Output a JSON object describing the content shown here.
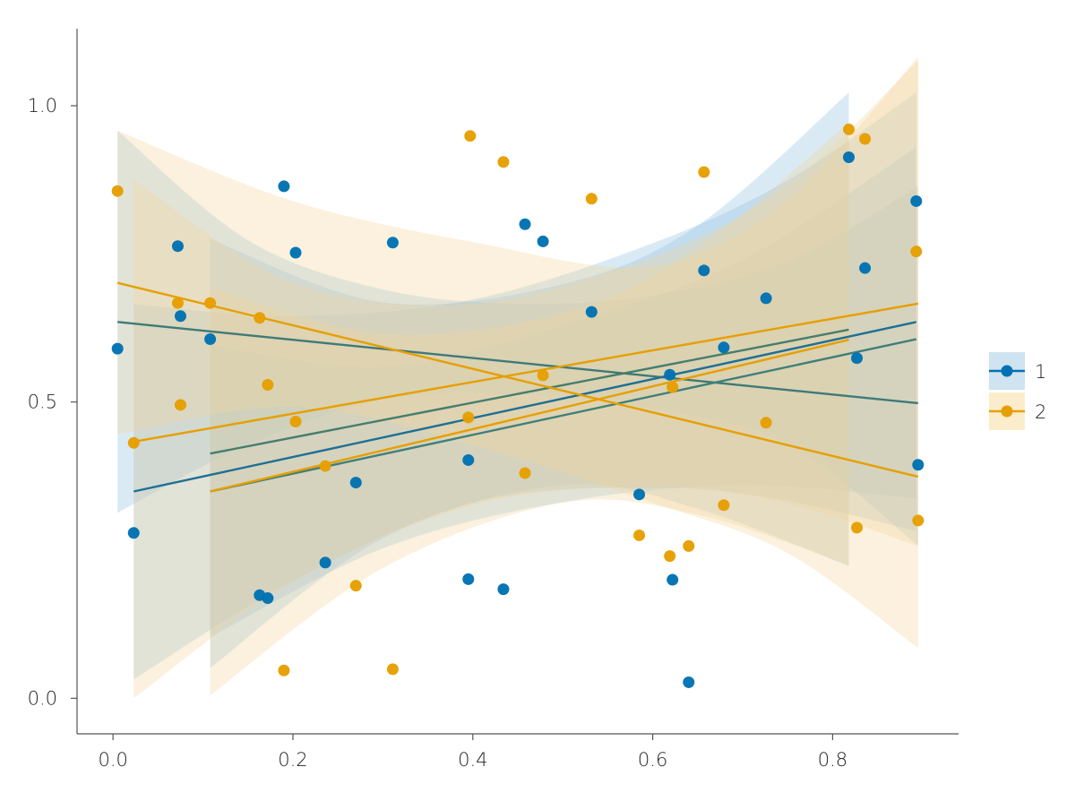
{
  "chart_data": {
    "type": "scatter",
    "title": "",
    "xlabel": "",
    "ylabel": "",
    "xlim": [
      -0.04,
      0.94
    ],
    "ylim": [
      -0.06,
      1.13
    ],
    "x_ticks": [
      {
        "value": 0.0,
        "label": "0.0"
      },
      {
        "value": 0.2,
        "label": "0.2"
      },
      {
        "value": 0.4,
        "label": "0.4"
      },
      {
        "value": 0.6,
        "label": "0.6"
      },
      {
        "value": 0.8,
        "label": "0.8"
      }
    ],
    "y_ticks": [
      {
        "value": 0.0,
        "label": "0.0"
      },
      {
        "value": 0.5,
        "label": "0.5"
      },
      {
        "value": 1.0,
        "label": "1.0"
      }
    ],
    "grid": false,
    "legend_position": "right",
    "series": [
      {
        "name": "1",
        "color": "#0072b2",
        "points": [
          [
            0.005,
            0.59
          ],
          [
            0.023,
            0.279
          ],
          [
            0.072,
            0.763
          ],
          [
            0.075,
            0.645
          ],
          [
            0.108,
            0.606
          ],
          [
            0.163,
            0.174
          ],
          [
            0.172,
            0.169
          ],
          [
            0.19,
            0.864
          ],
          [
            0.203,
            0.752
          ],
          [
            0.236,
            0.229
          ],
          [
            0.27,
            0.364
          ],
          [
            0.311,
            0.769
          ],
          [
            0.395,
            0.402
          ],
          [
            0.395,
            0.201
          ],
          [
            0.434,
            0.184
          ],
          [
            0.458,
            0.8
          ],
          [
            0.478,
            0.771
          ],
          [
            0.532,
            0.652
          ],
          [
            0.585,
            0.344
          ],
          [
            0.619,
            0.546
          ],
          [
            0.622,
            0.2
          ],
          [
            0.64,
            0.027
          ],
          [
            0.657,
            0.722
          ],
          [
            0.679,
            0.592
          ],
          [
            0.726,
            0.675
          ],
          [
            0.818,
            0.913
          ],
          [
            0.827,
            0.574
          ],
          [
            0.836,
            0.726
          ],
          [
            0.893,
            0.839
          ],
          [
            0.895,
            0.394
          ]
        ],
        "fit_lines": [
          {
            "x": [
              0.005,
              0.895
            ],
            "y": [
              0.635,
              0.498
            ]
          },
          {
            "x": [
              0.023,
              0.893
            ],
            "y": [
              0.349,
              0.635
            ]
          },
          {
            "x": [
              0.108,
              0.818
            ],
            "y": [
              0.413,
              0.622
            ]
          },
          {
            "x": [
              0.108,
              0.893
            ],
            "y": [
              0.349,
              0.606
            ]
          }
        ],
        "bands": [
          {
            "x": [
              0.005,
              0.15,
              0.3,
              0.45,
              0.6,
              0.75,
              0.895
            ],
            "lower": [
              0.313,
              0.428,
              0.504,
              0.513,
              0.489,
              0.43,
              0.258
            ],
            "upper": [
              0.958,
              0.773,
              0.69,
              0.666,
              0.68,
              0.737,
              0.864
            ]
          },
          {
            "x": [
              0.023,
              0.2,
              0.4,
              0.6,
              0.75,
              0.893
            ],
            "lower": [
              0.032,
              0.198,
              0.33,
              0.356,
              0.333,
              0.282
            ],
            "upper": [
              0.665,
              0.645,
              0.673,
              0.768,
              0.874,
              1.022
            ]
          },
          {
            "x": [
              0.108,
              0.3,
              0.5,
              0.65,
              0.818
            ],
            "lower": [
              0.051,
              0.27,
              0.36,
              0.32,
              0.223
            ],
            "upper": [
              0.775,
              0.668,
              0.699,
              0.798,
              1.022
            ]
          },
          {
            "x": [
              0.108,
              0.3,
              0.5,
              0.7,
              0.893
            ],
            "lower": [
              0.103,
              0.253,
              0.331,
              0.36,
              0.337
            ],
            "upper": [
              0.596,
              0.559,
              0.629,
              0.74,
              0.93
            ]
          }
        ]
      },
      {
        "name": "2",
        "color": "#e69f00",
        "points": [
          [
            0.005,
            0.856
          ],
          [
            0.023,
            0.431
          ],
          [
            0.072,
            0.667
          ],
          [
            0.075,
            0.495
          ],
          [
            0.108,
            0.667
          ],
          [
            0.163,
            0.642
          ],
          [
            0.172,
            0.529
          ],
          [
            0.19,
            0.047
          ],
          [
            0.203,
            0.467
          ],
          [
            0.236,
            0.392
          ],
          [
            0.27,
            0.19
          ],
          [
            0.311,
            0.049
          ],
          [
            0.395,
            0.474
          ],
          [
            0.397,
            0.949
          ],
          [
            0.434,
            0.905
          ],
          [
            0.458,
            0.38
          ],
          [
            0.478,
            0.545
          ],
          [
            0.532,
            0.843
          ],
          [
            0.585,
            0.275
          ],
          [
            0.619,
            0.24
          ],
          [
            0.622,
            0.525
          ],
          [
            0.64,
            0.257
          ],
          [
            0.657,
            0.888
          ],
          [
            0.679,
            0.326
          ],
          [
            0.726,
            0.465
          ],
          [
            0.818,
            0.96
          ],
          [
            0.827,
            0.288
          ],
          [
            0.836,
            0.944
          ],
          [
            0.893,
            0.754
          ],
          [
            0.895,
            0.3
          ]
        ],
        "fit_lines": [
          {
            "x": [
              0.005,
              0.895
            ],
            "y": [
              0.701,
              0.374
            ]
          },
          {
            "x": [
              0.023,
              0.895
            ],
            "y": [
              0.433,
              0.666
            ]
          },
          {
            "x": [
              0.108,
              0.818
            ],
            "y": [
              0.349,
              0.605
            ]
          }
        ],
        "bands": [
          {
            "x": [
              0.005,
              0.2,
              0.4,
              0.6,
              0.75,
              0.895
            ],
            "lower": [
              0.445,
              0.492,
              0.427,
              0.33,
              0.245,
              0.085
            ],
            "upper": [
              0.958,
              0.839,
              0.77,
              0.729,
              0.841,
              1.082
            ]
          },
          {
            "x": [
              0.023,
              0.2,
              0.4,
              0.6,
              0.75,
              0.895
            ],
            "lower": [
              0.0,
              0.196,
              0.326,
              0.358,
              0.329,
              0.257
            ],
            "upper": [
              0.875,
              0.701,
              0.665,
              0.745,
              0.866,
              1.076
            ]
          },
          {
            "x": [
              0.108,
              0.3,
              0.5,
              0.65,
              0.818
            ],
            "lower": [
              0.005,
              0.22,
              0.33,
              0.31,
              0.225
            ],
            "upper": [
              0.693,
              0.615,
              0.65,
              0.76,
              0.972
            ]
          }
        ]
      }
    ]
  }
}
